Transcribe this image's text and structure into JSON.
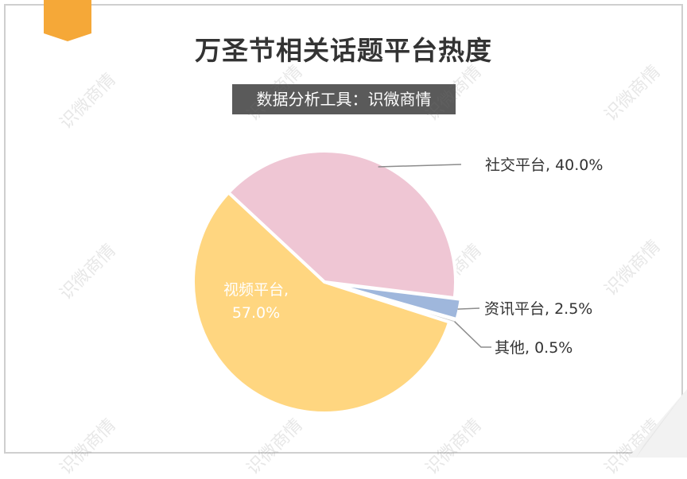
{
  "chart_data": {
    "type": "pie",
    "title": "万圣节相关话题平台热度",
    "subtitle": "数据分析工具：识微商情",
    "slices": [
      {
        "label": "社交平台",
        "value": 40.0,
        "display": "社交平台, 40.0%",
        "color": "#efc6d4"
      },
      {
        "label": "资讯平台",
        "value": 2.5,
        "display": "资讯平台, 2.5%",
        "color": "#9fb7dc"
      },
      {
        "label": "其他",
        "value": 0.5,
        "display": "其他, 0.5%",
        "color": "#c8c8c8"
      },
      {
        "label": "视频平台",
        "value": 57.0,
        "display_line1": "视频平台,",
        "display_line2": "57.0%",
        "color": "#ffd680"
      }
    ]
  },
  "watermark": "识微商情",
  "colors": {
    "accent_tab": "#f5a838",
    "subtitle_bg": "#5a5a5a"
  }
}
